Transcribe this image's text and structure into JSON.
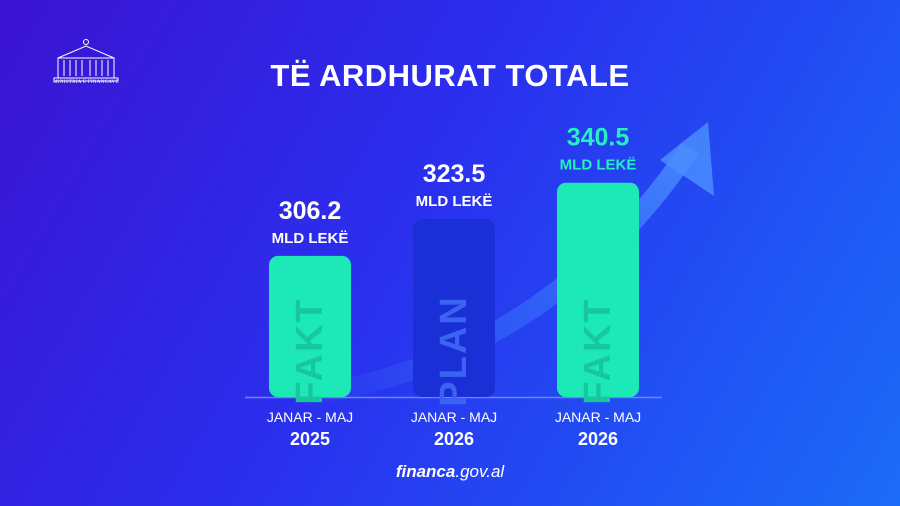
{
  "header": {
    "logo_text": "MINISTRIA E FINANCAVE",
    "title": "TË ARDHURAT TOTALE"
  },
  "chart_data": {
    "type": "bar",
    "title": "TË ARDHURAT TOTALE",
    "xlabel": "",
    "ylabel": "",
    "unit": "MLD LEKË",
    "categories": [
      {
        "period": "JANAR - MAJ",
        "year": "2025"
      },
      {
        "period": "JANAR - MAJ",
        "year": "2026"
      },
      {
        "period": "JANAR - MAJ",
        "year": "2026"
      }
    ],
    "values": [
      306.2,
      323.5,
      340.5
    ],
    "value_labels": [
      "306.2",
      "323.5",
      "340.5"
    ],
    "bar_labels": [
      "FAKT",
      "PLAN",
      "FAKT"
    ],
    "ylim": [
      240,
      346
    ],
    "grid": false,
    "colors": {
      "fakt_bar": "#1de9b6",
      "fakt_text": "#19c79f",
      "plan_bar": "#1b2fd6",
      "plan_text": "#3b63f2",
      "highlight_value": "#24f0c0",
      "label": "#ffffff",
      "baseline": "#6d85f4",
      "arrow": "#3f86ff"
    }
  },
  "footer": {
    "site_bold": "financa",
    "site_rest": ".gov.al"
  }
}
